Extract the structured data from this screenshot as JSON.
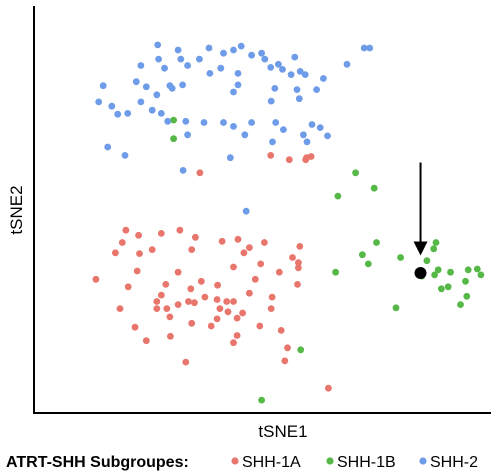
{
  "chart_data": {
    "type": "scatter",
    "title": "",
    "xlabel": "tSNE1",
    "ylabel": "tSNE2",
    "xlim": [
      0,
      100
    ],
    "ylim": [
      0,
      100
    ],
    "grid": false,
    "legend": {
      "title": "ATRT-SHH Subgroupes:",
      "position": "bottom"
    },
    "colors": {
      "SHH-1A": "#e8766c",
      "SHH-1B": "#55b847",
      "SHH-2": "#6e9ce8",
      "highlight": "#000000"
    },
    "series": [
      {
        "name": "SHH-1A",
        "points": [
          [
            36.1,
            59.4
          ],
          [
            51.7,
            63.8
          ],
          [
            55.8,
            62.7
          ],
          [
            59.6,
            63.2
          ],
          [
            60.6,
            63.5
          ],
          [
            59.4,
            62.7
          ],
          [
            27.6,
            44.1
          ],
          [
            31.7,
            44.9
          ],
          [
            35.1,
            43.1
          ],
          [
            19.8,
            44.9
          ],
          [
            22.6,
            43.6
          ],
          [
            19.0,
            41.8
          ],
          [
            41.0,
            42.1
          ],
          [
            44.5,
            42.6
          ],
          [
            47.0,
            40.5
          ],
          [
            45.8,
            39.2
          ],
          [
            50.3,
            41.8
          ],
          [
            58.1,
            40.8
          ],
          [
            25.6,
            40.0
          ],
          [
            17.5,
            39.2
          ],
          [
            22.8,
            39.0
          ],
          [
            34.3,
            40.0
          ],
          [
            22.3,
            34.6
          ],
          [
            31.3,
            34.3
          ],
          [
            53.6,
            34.3
          ],
          [
            57.8,
            36.7
          ],
          [
            56.5,
            38.0
          ],
          [
            57.6,
            31.2
          ],
          [
            49.5,
            36.4
          ],
          [
            48.3,
            32.5
          ],
          [
            43.5,
            35.6
          ],
          [
            13.2,
            32.5
          ],
          [
            20.3,
            30.6
          ],
          [
            28.6,
            31.2
          ],
          [
            34.1,
            30.1
          ],
          [
            36.4,
            32.0
          ],
          [
            27.6,
            28.5
          ],
          [
            26.6,
            25.1
          ],
          [
            34.9,
            26.6
          ],
          [
            33.6,
            26.9
          ],
          [
            26.6,
            26.9
          ],
          [
            31.3,
            26.1
          ],
          [
            37.2,
            28.0
          ],
          [
            18.5,
            25.1
          ],
          [
            29.5,
            23.0
          ],
          [
            28.8,
            25.1
          ],
          [
            40.5,
            25.1
          ],
          [
            39.9,
            27.4
          ],
          [
            42.0,
            26.9
          ],
          [
            42.3,
            24.3
          ],
          [
            44.3,
            22.7
          ],
          [
            43.5,
            26.9
          ],
          [
            39.9,
            22.5
          ],
          [
            38.6,
            20.7
          ],
          [
            34.3,
            21.4
          ],
          [
            29.6,
            18.1
          ],
          [
            24.3,
            17.0
          ],
          [
            21.8,
            20.4
          ],
          [
            43.5,
            16.5
          ],
          [
            44.3,
            18.3
          ],
          [
            51.8,
            25.1
          ],
          [
            54.0,
            19.6
          ],
          [
            55.4,
            15.2
          ],
          [
            33.0,
            11.6
          ],
          [
            49.3,
            20.7
          ],
          [
            54.8,
            11.9
          ],
          [
            57.8,
            35.4
          ],
          [
            64.4,
            5.0
          ],
          [
            40.0,
            31.0
          ],
          [
            47.0,
            29.0
          ],
          [
            52.0,
            28.0
          ],
          [
            45.5,
            24.0
          ]
        ]
      },
      {
        "name": "SHH-1B",
        "points": [
          [
            30.3,
            72.7
          ],
          [
            30.3,
            68.0
          ],
          [
            70.4,
            59.4
          ],
          [
            74.5,
            55.5
          ],
          [
            66.5,
            53.5
          ],
          [
            75.0,
            41.8
          ],
          [
            71.9,
            38.7
          ],
          [
            80.3,
            38.0
          ],
          [
            73.2,
            36.4
          ],
          [
            86.1,
            37.2
          ],
          [
            88.1,
            41.8
          ],
          [
            87.6,
            40.2
          ],
          [
            91.3,
            34.3
          ],
          [
            90.8,
            30.6
          ],
          [
            95.2,
            34.9
          ],
          [
            97.2,
            35.1
          ],
          [
            85.0,
            33.3
          ],
          [
            98.0,
            33.6
          ],
          [
            94.6,
            32.0
          ],
          [
            94.9,
            28.2
          ],
          [
            93.5,
            26.1
          ],
          [
            89.3,
            30.1
          ],
          [
            88.6,
            34.9
          ],
          [
            87.8,
            33.6
          ],
          [
            66.0,
            34.3
          ],
          [
            79.3,
            25.3
          ],
          [
            58.3,
            14.7
          ],
          [
            49.7,
            2.0
          ]
        ]
      },
      {
        "name": "SHH-2",
        "points": [
          [
            26.8,
            91.7
          ],
          [
            31.3,
            90.4
          ],
          [
            31.9,
            88.1
          ],
          [
            27.0,
            88.1
          ],
          [
            28.3,
            85.8
          ],
          [
            23.1,
            86.5
          ],
          [
            33.4,
            86.5
          ],
          [
            36.0,
            88.1
          ],
          [
            38.1,
            90.9
          ],
          [
            38.3,
            84.5
          ],
          [
            41.3,
            89.6
          ],
          [
            43.5,
            90.4
          ],
          [
            45.2,
            91.4
          ],
          [
            40.7,
            85.8
          ],
          [
            49.7,
            89.6
          ],
          [
            47.5,
            89.1
          ],
          [
            50.4,
            88.1
          ],
          [
            51.7,
            86.0
          ],
          [
            53.4,
            86.8
          ],
          [
            54.3,
            85.5
          ],
          [
            56.2,
            84.2
          ],
          [
            57.0,
            88.6
          ],
          [
            58.2,
            85.0
          ],
          [
            59.3,
            84.2
          ],
          [
            63.3,
            83.2
          ],
          [
            61.8,
            80.4
          ],
          [
            58.0,
            78.1
          ],
          [
            57.5,
            80.4
          ],
          [
            44.5,
            84.5
          ],
          [
            44.5,
            81.6
          ],
          [
            43.5,
            79.8
          ],
          [
            51.8,
            77.5
          ],
          [
            52.6,
            80.7
          ],
          [
            29.5,
            81.4
          ],
          [
            32.3,
            81.6
          ],
          [
            30.0,
            80.7
          ],
          [
            22.1,
            82.4
          ],
          [
            24.3,
            81.1
          ],
          [
            26.6,
            79.1
          ],
          [
            23.1,
            77.3
          ],
          [
            16.7,
            76.2
          ],
          [
            18.0,
            74.2
          ],
          [
            20.2,
            74.4
          ],
          [
            25.6,
            75.2
          ],
          [
            27.6,
            74.4
          ],
          [
            29.0,
            72.4
          ],
          [
            33.0,
            72.4
          ],
          [
            33.4,
            69.0
          ],
          [
            37.0,
            72.1
          ],
          [
            41.3,
            72.1
          ],
          [
            43.5,
            71.1
          ],
          [
            46.0,
            69.0
          ],
          [
            47.5,
            72.1
          ],
          [
            52.8,
            72.1
          ],
          [
            54.5,
            70.3
          ],
          [
            52.1,
            67.2
          ],
          [
            58.9,
            69.0
          ],
          [
            59.7,
            67.2
          ],
          [
            60.8,
            71.6
          ],
          [
            62.6,
            70.8
          ],
          [
            64.2,
            68.7
          ],
          [
            68.5,
            86.8
          ],
          [
            72.3,
            90.9
          ],
          [
            73.5,
            90.9
          ],
          [
            14.8,
            81.4
          ],
          [
            13.8,
            77.3
          ],
          [
            19.6,
            63.8
          ],
          [
            42.8,
            63.2
          ],
          [
            46.3,
            49.7
          ],
          [
            15.8,
            65.9
          ],
          [
            32.4,
            60.0
          ]
        ]
      },
      {
        "name": "",
        "highlight": true,
        "points": [
          [
            84.7,
            34.1
          ]
        ]
      }
    ],
    "annotation": {
      "type": "arrow",
      "tail": [
        84.7,
        62.0
      ],
      "head": [
        84.7,
        38.5
      ]
    }
  },
  "legend_items": [
    {
      "label": "SHH-1A",
      "color_key": "SHH-1A"
    },
    {
      "label": "SHH-1B",
      "color_key": "SHH-1B"
    },
    {
      "label": "SHH-2",
      "color_key": "SHH-2"
    }
  ]
}
